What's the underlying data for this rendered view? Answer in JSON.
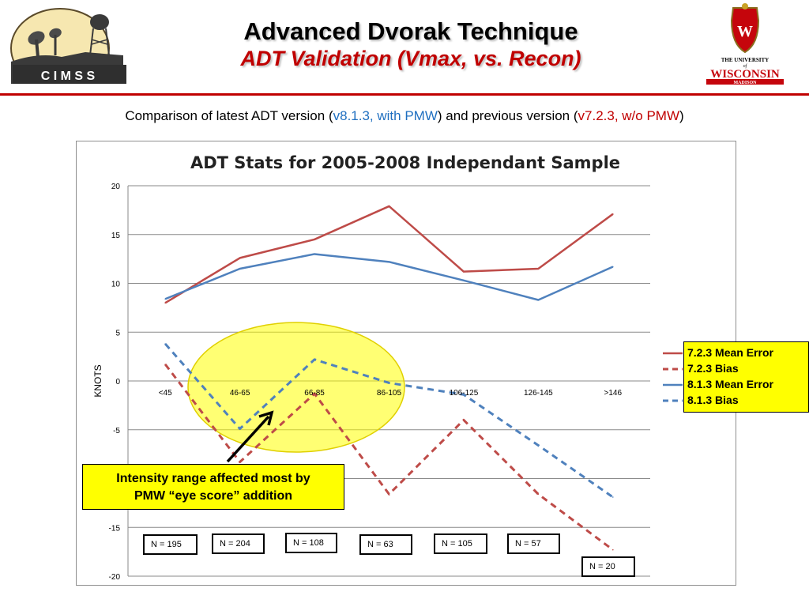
{
  "header": {
    "title": "Advanced Dvorak Technique",
    "subtitle": "ADT Validation (Vmax, vs. Recon)"
  },
  "logos": {
    "left_text": "C I M S S",
    "right_line1": "THE UNIVERSITY",
    "right_of": "of",
    "right_line2": "WISCONSIN",
    "right_line3": "MADISON"
  },
  "comparison": {
    "prefix": "Comparison of latest ADT version (",
    "new_version": "v8.1.3, with PMW",
    "middle": ") and previous version (",
    "old_version": "v7.2.3, w/o PMW",
    "suffix": ")"
  },
  "callout": {
    "line1": "Intensity range affected most by",
    "line2": "PMW “eye score” addition"
  },
  "sample_sizes": [
    "N = 195",
    "N = 204",
    "N = 108",
    "N = 63",
    "N = 105",
    "N = 57",
    "N = 20"
  ],
  "colors": {
    "v723": "#be4b48",
    "v813": "#4f81bd",
    "accent_red": "#c00000",
    "accent_blue": "#1f6fc0",
    "highlight": "#ffff00"
  },
  "chart_data": {
    "type": "line",
    "title": "ADT Stats for 2005-2008 Independant Sample",
    "xlabel": "",
    "ylabel": "KNOTS",
    "ylim": [
      -20,
      20
    ],
    "yticks": [
      -20,
      -15,
      -10,
      -5,
      0,
      5,
      10,
      15,
      20
    ],
    "grid": true,
    "legend_position": "right",
    "categories": [
      "<45",
      "46-65",
      "66-85",
      "86-105",
      "106-125",
      "126-145",
      ">146"
    ],
    "series": [
      {
        "name": "7.2.3 Mean Error",
        "color": "#be4b48",
        "dashed": false,
        "values": [
          8.0,
          12.6,
          14.5,
          17.9,
          11.2,
          11.5,
          17.1
        ]
      },
      {
        "name": "7.2.3 Bias",
        "color": "#be4b48",
        "dashed": true,
        "values": [
          1.7,
          -8.3,
          -1.3,
          -11.6,
          -4.0,
          -11.6,
          -17.3
        ]
      },
      {
        "name": "8.1.3 Mean Error",
        "color": "#4f81bd",
        "dashed": false,
        "values": [
          8.4,
          11.5,
          13.0,
          12.2,
          10.3,
          8.3,
          11.7
        ]
      },
      {
        "name": "8.1.3 Bias",
        "color": "#4f81bd",
        "dashed": true,
        "values": [
          3.8,
          -4.9,
          2.2,
          -0.2,
          -1.4,
          -6.6,
          -11.9
        ]
      }
    ]
  }
}
